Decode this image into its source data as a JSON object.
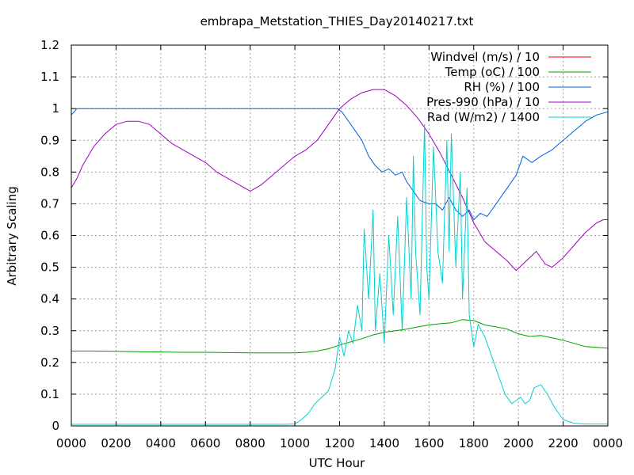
{
  "chart_data": {
    "type": "line",
    "title": "embrapa_Metstation_THIES_Day20140217.txt",
    "xlabel": "UTC Hour",
    "ylabel": "Arbitrary Scaling",
    "xlim": [
      0,
      24
    ],
    "ylim": [
      0,
      1.2
    ],
    "x_tick_labels": [
      "0000",
      "0200",
      "0400",
      "0600",
      "0800",
      "1000",
      "1200",
      "1400",
      "1600",
      "1800",
      "2000",
      "2200",
      "0000"
    ],
    "y_tick_labels": [
      "0",
      "0.1",
      "0.2",
      "0.3",
      "0.4",
      "0.5",
      "0.6",
      "0.7",
      "0.8",
      "0.9",
      "1",
      "1.1",
      "1.2"
    ],
    "grid": true,
    "legend_position": "top-right",
    "series": [
      {
        "name": "Windvel (m/s) / 10",
        "color": "#ff0000",
        "x": [],
        "y": []
      },
      {
        "name": "Temp (oC) / 100",
        "color": "#00a000",
        "x": [
          0,
          1,
          2,
          3,
          4,
          5,
          6,
          7,
          8,
          9,
          10,
          10.5,
          11,
          11.5,
          12,
          12.5,
          13,
          13.5,
          14,
          14.5,
          15,
          15.5,
          16,
          16.5,
          17,
          17.5,
          18,
          18.5,
          19,
          19.5,
          20,
          20.5,
          21,
          22,
          23,
          24
        ],
        "y": [
          0.236,
          0.236,
          0.235,
          0.234,
          0.233,
          0.232,
          0.232,
          0.231,
          0.23,
          0.23,
          0.23,
          0.232,
          0.236,
          0.243,
          0.255,
          0.265,
          0.275,
          0.287,
          0.295,
          0.3,
          0.305,
          0.312,
          0.318,
          0.322,
          0.325,
          0.335,
          0.332,
          0.318,
          0.312,
          0.305,
          0.29,
          0.282,
          0.285,
          0.27,
          0.25,
          0.245
        ]
      },
      {
        "name": "RH (%) / 100",
        "color": "#0060e0",
        "x": [
          0,
          0.25,
          0.5,
          1,
          2,
          4,
          6,
          8,
          10,
          11,
          11.5,
          11.9,
          12.1,
          12.3,
          12.6,
          13,
          13.3,
          13.6,
          13.9,
          14.2,
          14.5,
          14.8,
          15,
          15.3,
          15.6,
          16,
          16.3,
          16.6,
          16.9,
          17.2,
          17.5,
          17.8,
          18,
          18.3,
          18.6,
          19,
          19.5,
          19.9,
          20.2,
          20.6,
          21,
          21.5,
          22,
          22.5,
          23,
          23.5,
          24
        ],
        "y": [
          0.98,
          1.0,
          1.0,
          1.0,
          1.0,
          1.0,
          1.0,
          1.0,
          1.0,
          1.0,
          1.0,
          1.0,
          0.99,
          0.97,
          0.94,
          0.9,
          0.85,
          0.82,
          0.8,
          0.81,
          0.79,
          0.8,
          0.77,
          0.74,
          0.71,
          0.7,
          0.7,
          0.68,
          0.72,
          0.68,
          0.66,
          0.68,
          0.65,
          0.67,
          0.66,
          0.7,
          0.75,
          0.79,
          0.85,
          0.83,
          0.85,
          0.87,
          0.9,
          0.93,
          0.96,
          0.98,
          0.99
        ]
      },
      {
        "name": "Pres-990 (hPa) / 10",
        "color": "#a000c0",
        "x": [
          0,
          0.25,
          0.5,
          1,
          1.5,
          2,
          2.5,
          3,
          3.5,
          4,
          4.5,
          5,
          5.5,
          6,
          6.5,
          7,
          7.5,
          8,
          8.5,
          9,
          9.5,
          10,
          10.5,
          11,
          11.5,
          12,
          12.5,
          13,
          13.5,
          14,
          14.5,
          15,
          15.5,
          16,
          16.5,
          17,
          17.5,
          18,
          18.5,
          19,
          19.5,
          19.9,
          20.2,
          20.5,
          20.8,
          21.2,
          21.5,
          22,
          22.5,
          23,
          23.5,
          23.8,
          24
        ],
        "y": [
          0.75,
          0.78,
          0.82,
          0.88,
          0.92,
          0.95,
          0.96,
          0.96,
          0.95,
          0.92,
          0.89,
          0.87,
          0.85,
          0.83,
          0.8,
          0.78,
          0.76,
          0.74,
          0.76,
          0.79,
          0.82,
          0.85,
          0.87,
          0.9,
          0.95,
          1.0,
          1.03,
          1.05,
          1.06,
          1.06,
          1.04,
          1.01,
          0.97,
          0.92,
          0.86,
          0.79,
          0.72,
          0.64,
          0.58,
          0.55,
          0.52,
          0.49,
          0.51,
          0.53,
          0.55,
          0.51,
          0.5,
          0.53,
          0.57,
          0.61,
          0.64,
          0.65,
          0.65
        ]
      },
      {
        "name": "Rad (W/m2) / 1400",
        "color": "#00d0d0",
        "x": [
          0,
          1,
          2,
          4,
          6,
          8,
          9,
          9.5,
          10,
          10.3,
          10.6,
          10.9,
          11.2,
          11.5,
          11.8,
          12,
          12.2,
          12.4,
          12.6,
          12.8,
          13,
          13.1,
          13.3,
          13.5,
          13.6,
          13.8,
          14,
          14.2,
          14.4,
          14.6,
          14.8,
          15,
          15.2,
          15.3,
          15.4,
          15.6,
          15.8,
          15.9,
          16,
          16.2,
          16.4,
          16.6,
          16.8,
          16.9,
          17,
          17.2,
          17.4,
          17.5,
          17.7,
          17.8,
          18,
          18.2,
          18.5,
          18.8,
          19.1,
          19.4,
          19.7,
          19.9,
          20.1,
          20.3,
          20.5,
          20.7,
          21,
          21.3,
          21.6,
          22,
          22.5,
          23,
          24
        ],
        "y": [
          0.005,
          0.005,
          0.005,
          0.005,
          0.005,
          0.005,
          0.005,
          0.005,
          0.006,
          0.02,
          0.04,
          0.07,
          0.09,
          0.11,
          0.18,
          0.28,
          0.22,
          0.3,
          0.26,
          0.38,
          0.3,
          0.62,
          0.4,
          0.68,
          0.3,
          0.48,
          0.26,
          0.6,
          0.35,
          0.66,
          0.3,
          0.72,
          0.4,
          0.85,
          0.55,
          0.35,
          0.95,
          0.5,
          0.4,
          0.88,
          0.55,
          0.45,
          0.9,
          0.55,
          0.92,
          0.5,
          0.8,
          0.4,
          0.75,
          0.35,
          0.25,
          0.32,
          0.28,
          0.22,
          0.16,
          0.1,
          0.07,
          0.08,
          0.09,
          0.07,
          0.08,
          0.12,
          0.13,
          0.1,
          0.06,
          0.02,
          0.008,
          0.006,
          0.006
        ]
      }
    ]
  }
}
